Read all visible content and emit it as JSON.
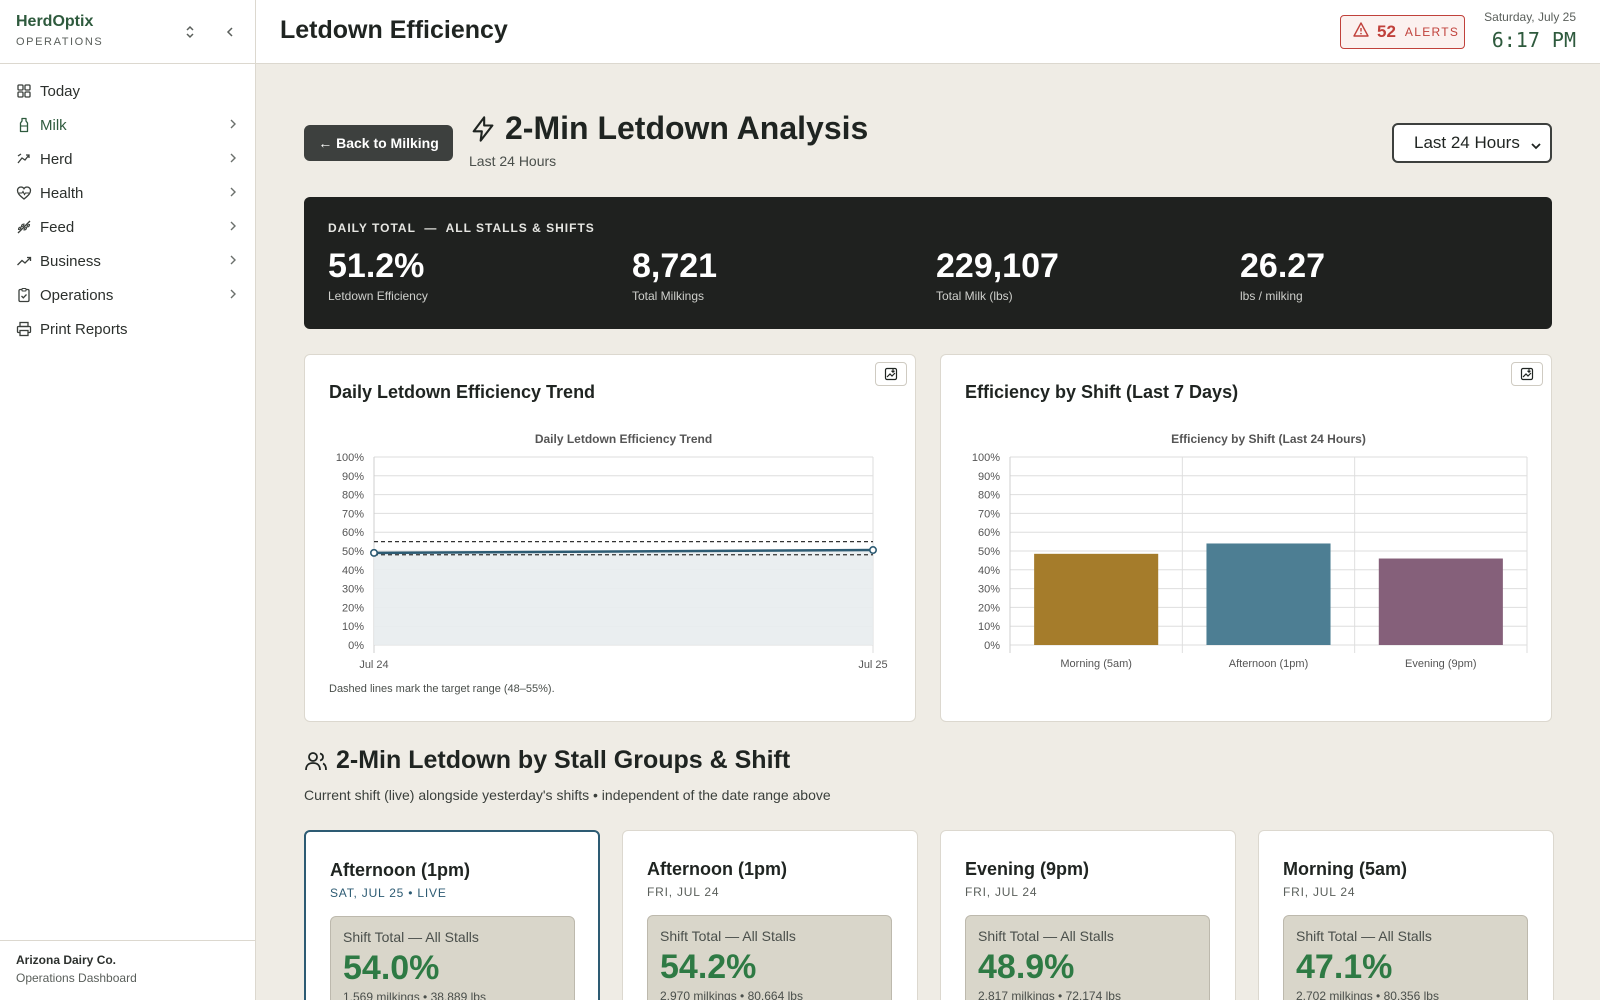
{
  "brand": {
    "name": "HerdOptix",
    "sub": "OPERATIONS"
  },
  "sidebar": {
    "items": [
      {
        "label": "Today",
        "icon": "dashboard-icon",
        "has_chevron": false
      },
      {
        "label": "Milk",
        "icon": "milk-bottle-icon",
        "has_chevron": true
      },
      {
        "label": "Herd",
        "icon": "herd-icon",
        "has_chevron": true
      },
      {
        "label": "Health",
        "icon": "heart-pulse-icon",
        "has_chevron": true
      },
      {
        "label": "Feed",
        "icon": "wheat-icon",
        "has_chevron": true
      },
      {
        "label": "Business",
        "icon": "trending-up-icon",
        "has_chevron": true
      },
      {
        "label": "Operations",
        "icon": "clipboard-check-icon",
        "has_chevron": true
      },
      {
        "label": "Print Reports",
        "icon": "printer-icon",
        "has_chevron": false
      }
    ],
    "footer": {
      "org": "Arizona Dairy Co.",
      "sub": "Operations Dashboard"
    }
  },
  "header": {
    "title": "Letdown Efficiency",
    "alerts_count": "52",
    "alerts_label": "ALERTS",
    "date": "Saturday, July 25",
    "time": "6:17 PM"
  },
  "analysis": {
    "back_label": "← Back to Milking",
    "title": "2-Min Letdown Analysis",
    "subtitle": "Last 24 Hours",
    "range_selected": "Last 24 Hours"
  },
  "kpis": {
    "label": "DAILY TOTAL  —  ALL STALLS & SHIFTS",
    "items": [
      {
        "value": "51.2%",
        "caption": "Letdown Efficiency"
      },
      {
        "value": "8,721",
        "caption": "Total Milkings"
      },
      {
        "value": "229,107",
        "caption": "Total Milk (lbs)"
      },
      {
        "value": "26.27",
        "caption": "lbs / milking"
      }
    ]
  },
  "cards": {
    "trend_title": "Daily Letdown Efficiency Trend",
    "shift_title": "Efficiency by Shift (Last 7 Days)",
    "trend_note": "Dashed lines mark the target range (48–55%)."
  },
  "chart_data": [
    {
      "type": "line",
      "title": "Daily Letdown Efficiency Trend",
      "x": [
        "Jul 24",
        "Jul 25"
      ],
      "series": [
        {
          "values": [
            49.0,
            50.5
          ]
        }
      ],
      "target_range": [
        48,
        55
      ],
      "ylim": [
        0,
        100
      ],
      "yticks": [
        "0%",
        "10%",
        "20%",
        "30%",
        "40%",
        "50%",
        "60%",
        "70%",
        "80%",
        "90%",
        "100%"
      ],
      "grid": true,
      "colors": {
        "line": "#2d5b73",
        "fill": "#e8ecee"
      }
    },
    {
      "type": "bar",
      "title": "Efficiency by Shift (Last 24 Hours)",
      "categories": [
        "Morning (5am)",
        "Afternoon (1pm)",
        "Evening (9pm)"
      ],
      "values": [
        48.5,
        54.0,
        46.0
      ],
      "ylim": [
        0,
        100
      ],
      "yticks": [
        "0%",
        "10%",
        "20%",
        "30%",
        "40%",
        "50%",
        "60%",
        "70%",
        "80%",
        "90%",
        "100%"
      ],
      "grid": true,
      "colors": [
        "#a57c2b",
        "#4d7e93",
        "#85607a"
      ]
    }
  ],
  "stall_section": {
    "title": "2-Min Letdown by Stall Groups & Shift",
    "subtitle": "Current shift (live) alongside yesterday's shifts • independent of the date range above",
    "shifts": [
      {
        "name": "Afternoon (1pm)",
        "day": "SAT, JUL 25 • LIVE",
        "label": "Shift Total — All Stalls",
        "pct": "54.0%",
        "meta": "1,569 milkings • 38,889 lbs",
        "live": true
      },
      {
        "name": "Afternoon (1pm)",
        "day": "FRI, JUL 24",
        "label": "Shift Total — All Stalls",
        "pct": "54.2%",
        "meta": "2,970 milkings • 80,664 lbs",
        "live": false
      },
      {
        "name": "Evening (9pm)",
        "day": "FRI, JUL 24",
        "label": "Shift Total — All Stalls",
        "pct": "48.9%",
        "meta": "2,817 milkings • 72,174 lbs",
        "live": false
      },
      {
        "name": "Morning (5am)",
        "day": "FRI, JUL 24",
        "label": "Shift Total — All Stalls",
        "pct": "47.1%",
        "meta": "2,702 milkings • 80,356 lbs",
        "live": false
      }
    ]
  }
}
